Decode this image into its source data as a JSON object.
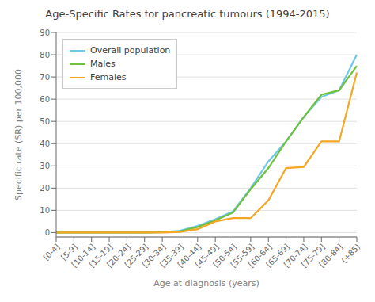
{
  "chart_data": {
    "type": "line",
    "title": "Age-Specific Rates for pancreatic tumours (1994-2015)",
    "xlabel": "Age at diagnosis (years)",
    "ylabel": "Specific rate (SR) per 100,000",
    "categories": [
      "[0-4]",
      "[5-9]",
      "[10-14]",
      "[15-19]",
      "[20-24]",
      "[25-29]",
      "[30-34]",
      "[35-39]",
      "[40-44]",
      "[45-49]",
      "[50-54]",
      "[55-59]",
      "[60-64]",
      "[65-69]",
      "[70-74]",
      "[75-79]",
      "[80-84]",
      "(+85)"
    ],
    "series": [
      {
        "name": "Overall population",
        "color": "#70c8e8",
        "values": [
          0,
          0,
          0,
          0,
          0,
          0,
          0.2,
          0.8,
          3.0,
          6.0,
          9.5,
          20.0,
          32.0,
          41.0,
          52.0,
          61.0,
          64.0,
          80.0
        ]
      },
      {
        "name": "Males",
        "color": "#70c040",
        "values": [
          0,
          0,
          0,
          0,
          0,
          0,
          0.2,
          0.5,
          2.5,
          5.5,
          9.0,
          19.5,
          29.0,
          41.0,
          52.0,
          62.0,
          64.0,
          75.0
        ]
      },
      {
        "name": "Females",
        "color": "#f5a623",
        "values": [
          0,
          0,
          0,
          0,
          0,
          0,
          0.0,
          0.3,
          1.5,
          5.0,
          6.5,
          6.5,
          14.5,
          29.0,
          29.5,
          41.0,
          41.0,
          72.0
        ]
      }
    ],
    "ylim": [
      -2,
      90
    ],
    "yticks": [
      0,
      10,
      20,
      30,
      40,
      50,
      60,
      70,
      80,
      90
    ],
    "grid": true,
    "legend": "upper left"
  }
}
